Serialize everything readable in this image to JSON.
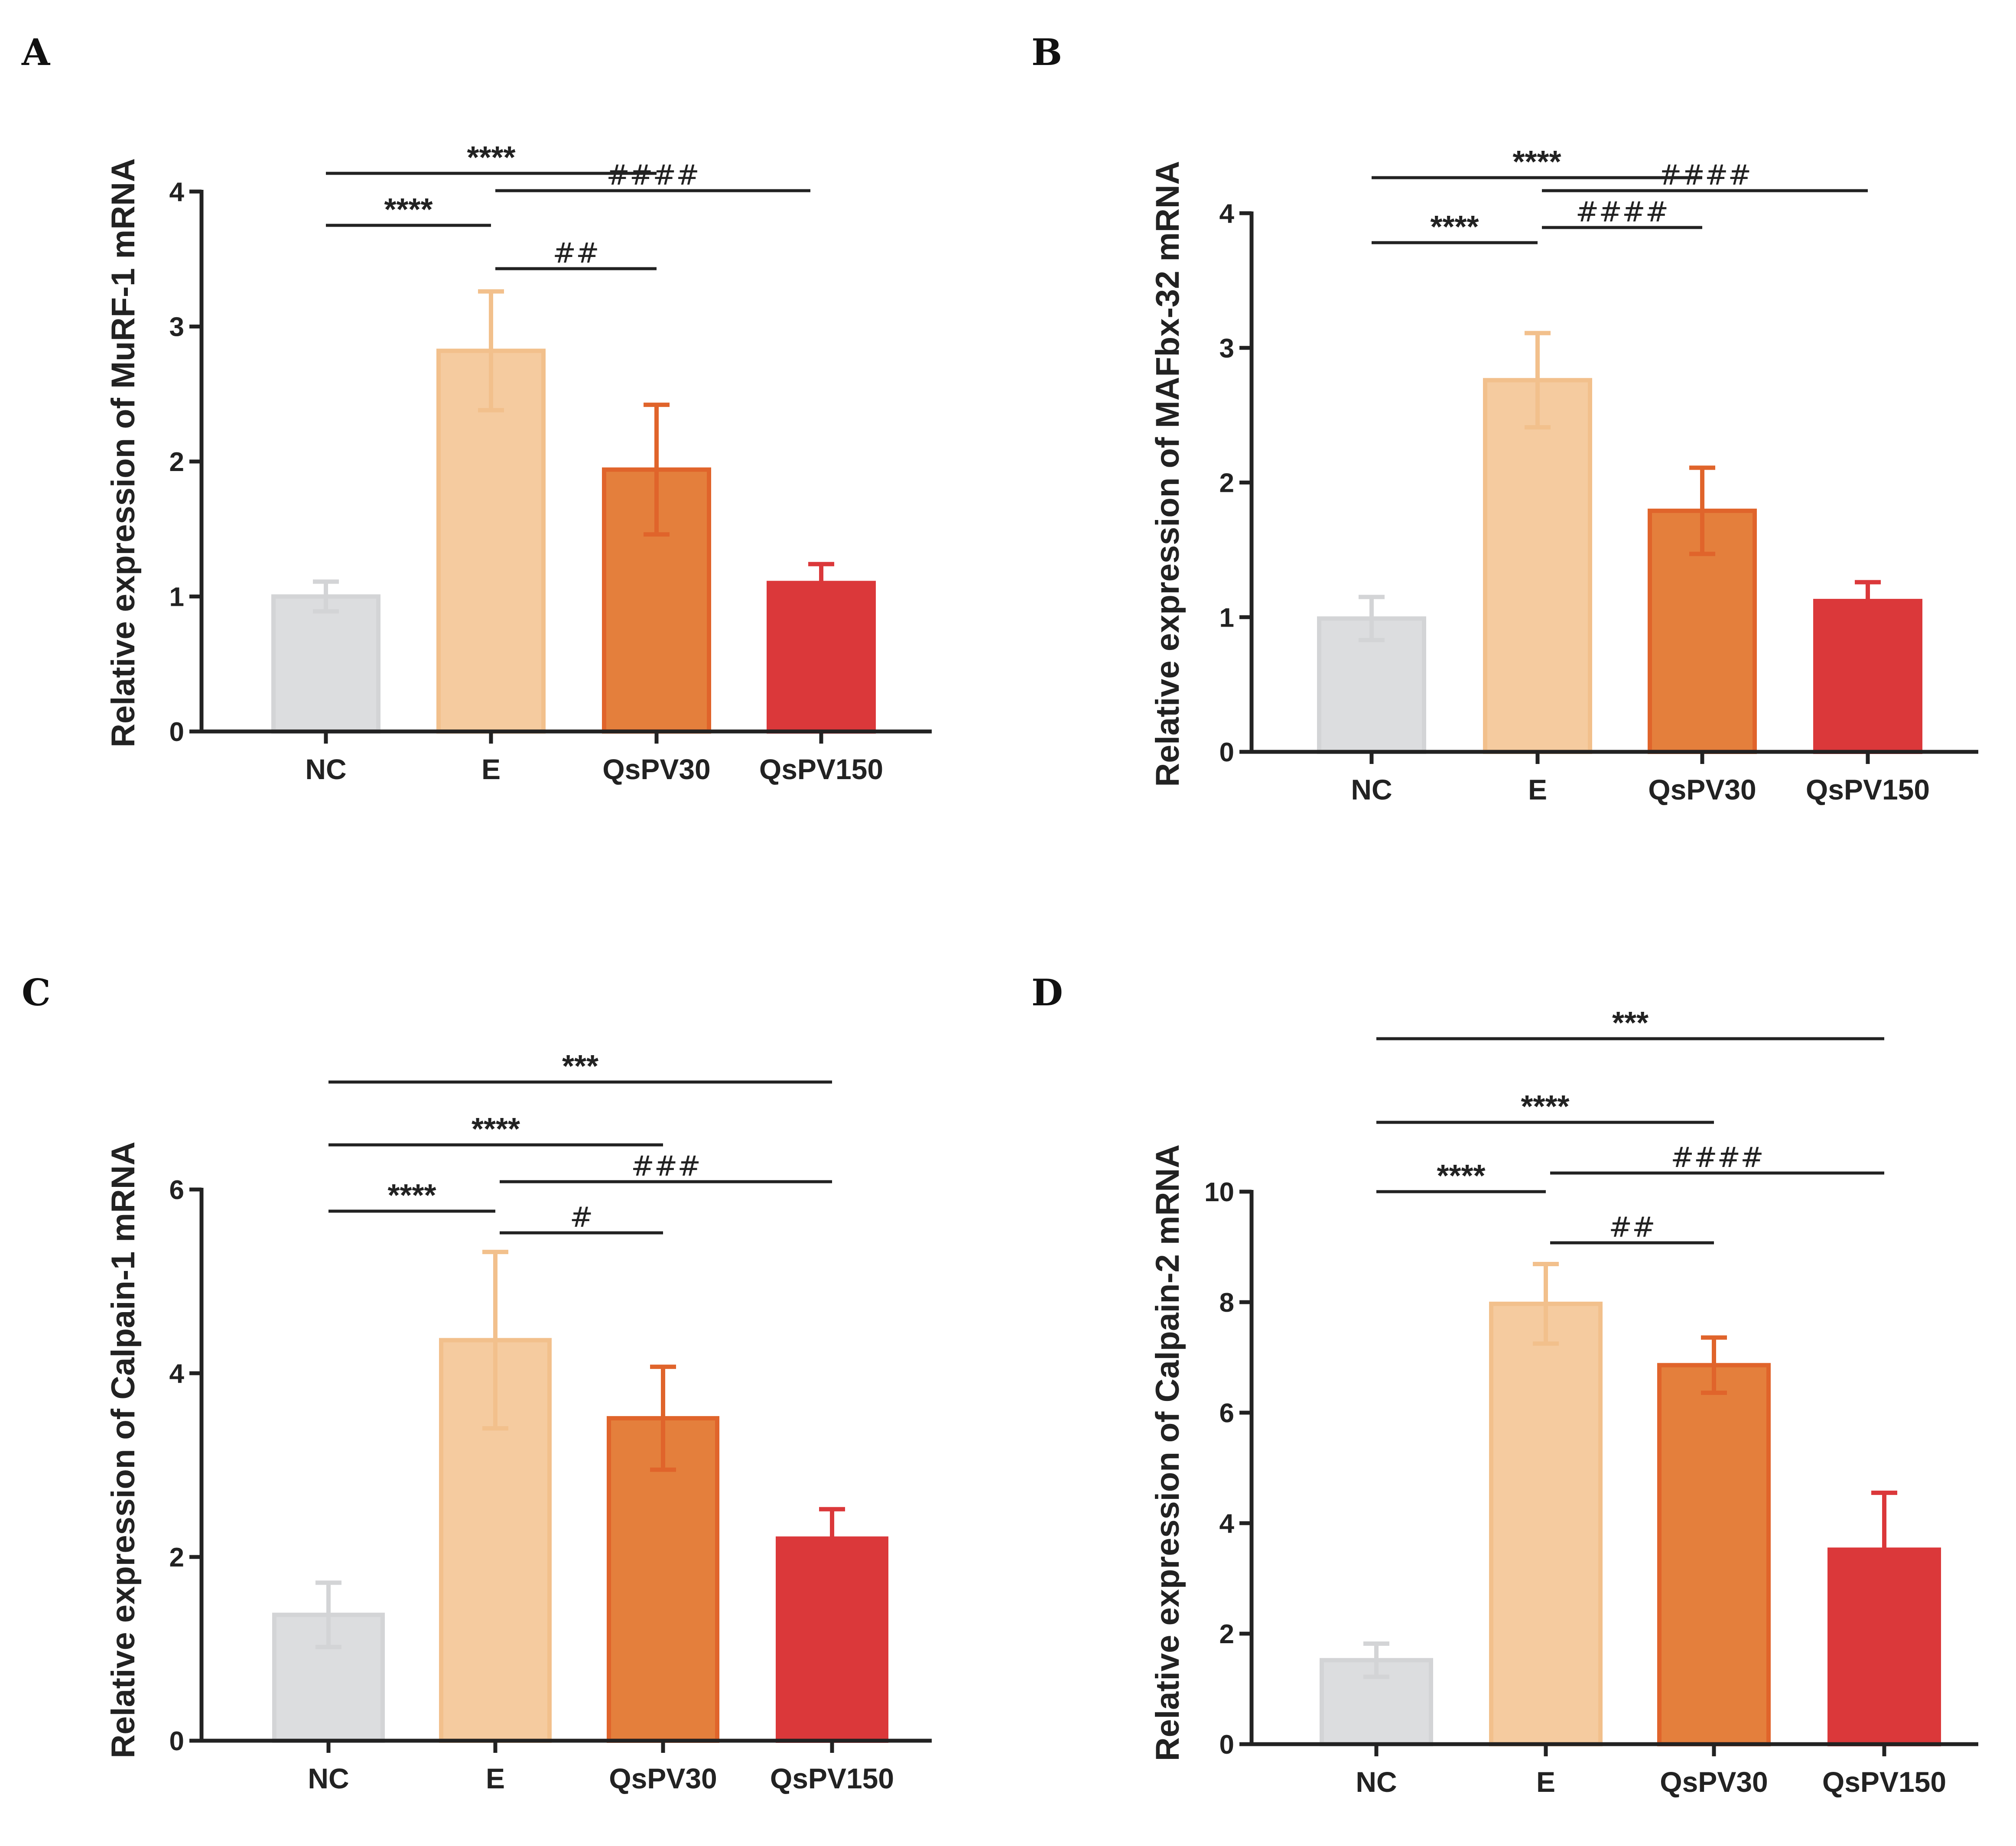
{
  "colors": {
    "NC": {
      "fill": "#dcdddf",
      "stroke": "#d3d4d6"
    },
    "E": {
      "fill": "#f5cb9f",
      "stroke": "#f2c08c"
    },
    "QsPV30": {
      "fill": "#e47f3c",
      "stroke": "#e0642b"
    },
    "QsPV150": {
      "fill": "#db383a",
      "stroke": "#db383a"
    },
    "axis": "#222222"
  },
  "chart_data": [
    {
      "panel": "A",
      "type": "bar",
      "ylabel": "Relative expression of MuRF-1 mRNA",
      "categories": [
        "NC",
        "E",
        "QsPV30",
        "QsPV150"
      ],
      "values": [
        1.0,
        2.82,
        1.94,
        1.1
      ],
      "errors": [
        0.11,
        0.44,
        0.48,
        0.14
      ],
      "ylim": [
        0,
        4
      ],
      "yticks": [
        "0",
        "1",
        "2",
        "3",
        "4"
      ],
      "significance": [
        {
          "from": 0,
          "to": 2,
          "label": "****"
        },
        {
          "from": 0,
          "to": 1,
          "label": "****"
        },
        {
          "from": 1,
          "to": 2,
          "label": "##"
        },
        {
          "from": 1,
          "to": 3,
          "label": "####"
        }
      ]
    },
    {
      "panel": "B",
      "type": "bar",
      "ylabel": "Relative expression of MAFbx-32 mRNA",
      "categories": [
        "NC",
        "E",
        "QsPV30",
        "QsPV150"
      ],
      "values": [
        0.99,
        2.76,
        1.79,
        1.12
      ],
      "errors": [
        0.16,
        0.35,
        0.32,
        0.14
      ],
      "ylim": [
        0,
        4
      ],
      "yticks": [
        "0",
        "1",
        "2",
        "3",
        "4"
      ],
      "significance": [
        {
          "from": 0,
          "to": 2,
          "label": "****"
        },
        {
          "from": 0,
          "to": 1,
          "label": "****"
        },
        {
          "from": 1,
          "to": 3,
          "label": "####"
        },
        {
          "from": 1,
          "to": 2,
          "label": "####"
        }
      ]
    },
    {
      "panel": "C",
      "type": "bar",
      "ylabel": "Relative expression of Calpain-1 mRNA",
      "categories": [
        "NC",
        "E",
        "QsPV30",
        "QsPV150"
      ],
      "values": [
        1.37,
        4.36,
        3.51,
        2.2
      ],
      "errors": [
        0.35,
        0.96,
        0.56,
        0.32
      ],
      "ylim": [
        0,
        6
      ],
      "yticks": [
        "0",
        "2",
        "4",
        "6"
      ],
      "significance": [
        {
          "from": 0,
          "to": 3,
          "label": "***"
        },
        {
          "from": 0,
          "to": 2,
          "label": "****"
        },
        {
          "from": 1,
          "to": 3,
          "label": "###"
        },
        {
          "from": 0,
          "to": 1,
          "label": "****"
        },
        {
          "from": 1,
          "to": 2,
          "label": "#"
        }
      ]
    },
    {
      "panel": "D",
      "type": "bar",
      "ylabel": "Relative expression of Calpain-2 mRNA",
      "categories": [
        "NC",
        "E",
        "QsPV30",
        "QsPV150"
      ],
      "values": [
        1.52,
        7.97,
        6.86,
        3.52
      ],
      "errors": [
        0.3,
        0.72,
        0.5,
        1.03
      ],
      "ylim": [
        0,
        10
      ],
      "yticks": [
        "0",
        "2",
        "4",
        "6",
        "8",
        "10"
      ],
      "significance": [
        {
          "from": 0,
          "to": 3,
          "label": "***"
        },
        {
          "from": 0,
          "to": 2,
          "label": "****"
        },
        {
          "from": 0,
          "to": 1,
          "label": "****"
        },
        {
          "from": 1,
          "to": 3,
          "label": "####"
        },
        {
          "from": 1,
          "to": 2,
          "label": "##"
        }
      ]
    }
  ]
}
